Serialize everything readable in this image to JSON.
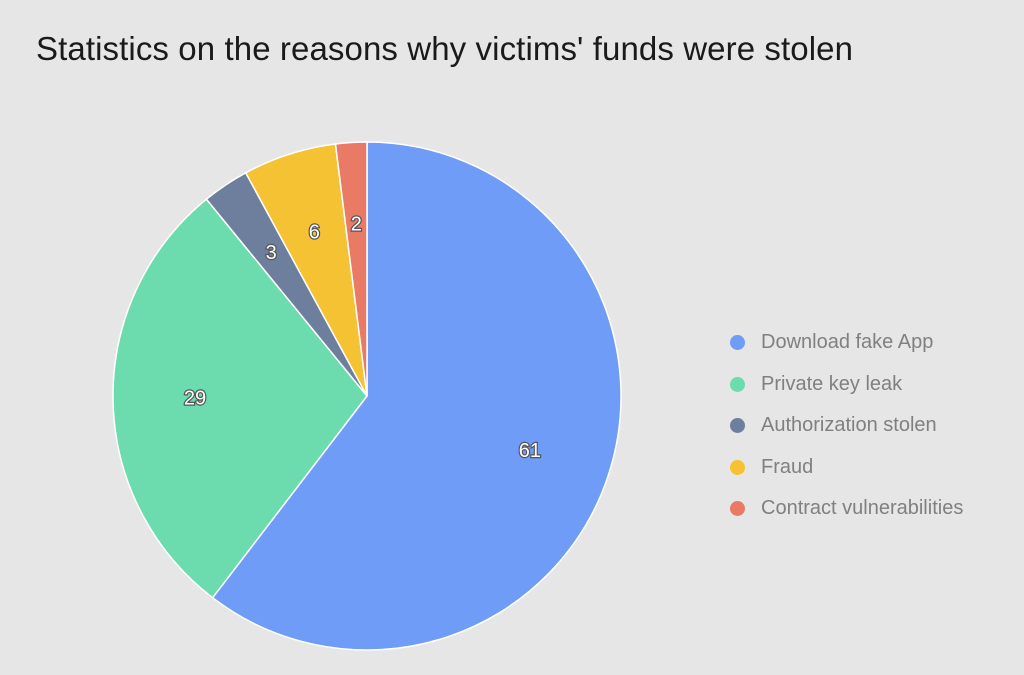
{
  "chart_data": {
    "type": "pie",
    "title": "Statistics on the reasons why victims' funds were stolen",
    "categories": [
      "Download fake App",
      "Private key leak",
      "Authorization stolen",
      "Fraud",
      "Contract vulnerabilities"
    ],
    "values": [
      61,
      29,
      3,
      6,
      2
    ],
    "colors": [
      "#6e9cf7",
      "#6cdbad",
      "#6d7f9c",
      "#f4c233",
      "#e87a66"
    ],
    "legend_position": "right",
    "labels_shown": "values",
    "start_angle": "top, clockwise"
  }
}
